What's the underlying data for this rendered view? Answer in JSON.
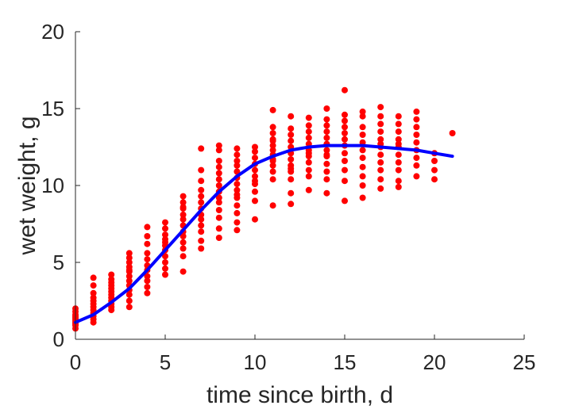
{
  "chart_data": {
    "type": "scatter",
    "title": "",
    "xlabel": "time since birth, d",
    "ylabel": "wet weight, g",
    "xlim": [
      0,
      25
    ],
    "ylim": [
      0,
      20
    ],
    "xticks": [
      0,
      5,
      10,
      15,
      20,
      25
    ],
    "yticks": [
      0,
      5,
      10,
      15,
      20
    ],
    "grid": false,
    "box": false,
    "colors": {
      "points": "#ff0000",
      "fit": "#0000ff",
      "axes": "#262626"
    },
    "series": [
      {
        "kind": "points",
        "x": [
          0,
          0,
          0,
          0,
          0,
          0,
          0,
          0,
          0,
          0,
          0,
          1,
          1,
          1,
          1,
          1,
          1,
          1,
          1,
          1,
          1,
          1,
          1,
          2,
          2,
          2,
          2,
          2,
          2,
          2,
          2,
          2,
          2,
          2,
          2,
          3,
          3,
          3,
          3,
          3,
          3,
          3,
          3,
          3,
          3,
          3,
          3,
          3,
          4,
          4,
          4,
          4,
          4,
          4,
          4,
          4,
          4,
          4,
          4,
          5,
          5,
          5,
          5,
          5,
          5,
          5,
          5,
          5,
          5,
          5,
          6,
          6,
          6,
          6,
          6,
          6,
          6,
          6,
          6,
          6,
          6,
          6,
          6,
          7,
          7,
          7,
          7,
          7,
          7,
          7,
          7,
          7,
          7,
          7,
          7,
          7,
          8,
          8,
          8,
          8,
          8,
          8,
          8,
          8,
          8,
          8,
          8,
          8,
          8,
          8,
          9,
          9,
          9,
          9,
          9,
          9,
          9,
          9,
          9,
          9,
          9,
          9,
          9,
          9,
          10,
          10,
          10,
          10,
          10,
          10,
          10,
          10,
          10,
          10,
          10,
          11,
          11,
          11,
          11,
          11,
          11,
          11,
          11,
          11,
          11,
          11,
          11,
          11,
          11,
          12,
          12,
          12,
          12,
          12,
          12,
          12,
          12,
          12,
          12,
          12,
          12,
          12,
          13,
          13,
          13,
          13,
          13,
          13,
          13,
          13,
          13,
          13,
          13,
          13,
          14,
          14,
          14,
          14,
          14,
          14,
          14,
          14,
          14,
          14,
          14,
          14,
          14,
          15,
          15,
          15,
          15,
          15,
          15,
          15,
          15,
          15,
          15,
          15,
          15,
          16,
          16,
          16,
          16,
          16,
          16,
          16,
          16,
          16,
          16,
          16,
          17,
          17,
          17,
          17,
          17,
          17,
          17,
          17,
          17,
          17,
          17,
          17,
          18,
          18,
          18,
          18,
          18,
          18,
          18,
          18,
          18,
          18,
          18,
          19,
          19,
          19,
          19,
          19,
          19,
          19,
          19,
          19,
          20,
          20,
          20,
          20,
          21
        ],
        "y": [
          0.7,
          0.9,
          1.0,
          1.1,
          1.2,
          1.3,
          1.4,
          1.5,
          1.6,
          1.8,
          2.0,
          1.1,
          1.3,
          1.5,
          1.7,
          1.9,
          2.1,
          2.3,
          2.5,
          2.7,
          3.0,
          3.5,
          4.0,
          1.9,
          2.1,
          2.3,
          2.5,
          2.7,
          2.9,
          3.1,
          3.3,
          3.5,
          3.7,
          3.9,
          4.2,
          2.1,
          2.5,
          2.9,
          3.2,
          3.5,
          3.8,
          4.1,
          4.4,
          4.7,
          5.0,
          5.3,
          5.6,
          4.5,
          3.0,
          3.4,
          3.8,
          4.1,
          4.5,
          4.8,
          5.2,
          5.6,
          6.2,
          6.7,
          7.3,
          4.2,
          4.6,
          5.0,
          5.4,
          5.8,
          6.1,
          6.5,
          6.8,
          7.2,
          7.6,
          6.3,
          4.4,
          5.4,
          5.9,
          6.3,
          6.7,
          7.0,
          7.4,
          7.8,
          8.1,
          8.5,
          8.9,
          9.3,
          8.6,
          5.9,
          6.4,
          7.0,
          7.4,
          7.8,
          8.1,
          8.5,
          8.9,
          9.3,
          9.7,
          10.3,
          11.0,
          12.4,
          6.6,
          7.2,
          7.9,
          8.4,
          8.9,
          9.2,
          9.6,
          10.0,
          10.4,
          10.8,
          11.2,
          11.6,
          12.3,
          12.6,
          7.1,
          7.6,
          8.2,
          8.7,
          9.2,
          9.7,
          10.1,
          10.5,
          10.9,
          11.3,
          11.6,
          12.0,
          12.4,
          9.4,
          7.8,
          9.0,
          9.6,
          10.1,
          10.6,
          11.0,
          11.4,
          11.8,
          12.2,
          12.5,
          10.3,
          8.7,
          10.4,
          10.9,
          11.3,
          11.7,
          12.0,
          12.3,
          12.6,
          13.0,
          13.4,
          13.8,
          14.9,
          12.9,
          11.6,
          8.8,
          9.5,
          10.4,
          10.9,
          11.3,
          11.7,
          12.1,
          12.5,
          12.9,
          13.3,
          13.7,
          14.5,
          11.1,
          9.7,
          10.6,
          11.0,
          11.5,
          11.9,
          12.3,
          12.7,
          13.1,
          13.5,
          13.9,
          14.4,
          12.1,
          9.5,
          10.4,
          10.9,
          11.4,
          11.9,
          12.3,
          12.7,
          13.1,
          13.5,
          13.9,
          14.3,
          15.0,
          12.0,
          9.0,
          10.3,
          11.0,
          11.6,
          12.1,
          12.6,
          13.0,
          13.4,
          13.8,
          14.2,
          14.6,
          16.2,
          9.2,
          10.0,
          10.6,
          11.2,
          11.8,
          12.3,
          12.8,
          13.3,
          13.8,
          14.5,
          14.8,
          9.8,
          10.4,
          11.0,
          11.5,
          12.0,
          12.5,
          13.0,
          13.5,
          14.0,
          14.5,
          15.1,
          12.7,
          9.9,
          10.3,
          11.0,
          11.5,
          12.0,
          12.5,
          13.0,
          13.5,
          14.0,
          14.5,
          12.7,
          10.6,
          11.3,
          11.8,
          12.3,
          12.8,
          13.3,
          13.8,
          14.3,
          14.8,
          10.4,
          11.0,
          11.6,
          12.1,
          13.4
        ]
      },
      {
        "kind": "fit",
        "x": [
          0,
          1,
          2,
          3,
          4,
          5,
          6,
          7,
          8,
          9,
          10,
          11,
          12,
          13,
          14,
          15,
          16,
          17,
          18,
          19,
          20,
          21
        ],
        "y": [
          1.1,
          1.6,
          2.4,
          3.3,
          4.5,
          5.8,
          7.1,
          8.4,
          9.6,
          10.6,
          11.4,
          11.9,
          12.3,
          12.5,
          12.6,
          12.6,
          12.6,
          12.5,
          12.4,
          12.3,
          12.1,
          11.9
        ]
      }
    ]
  }
}
